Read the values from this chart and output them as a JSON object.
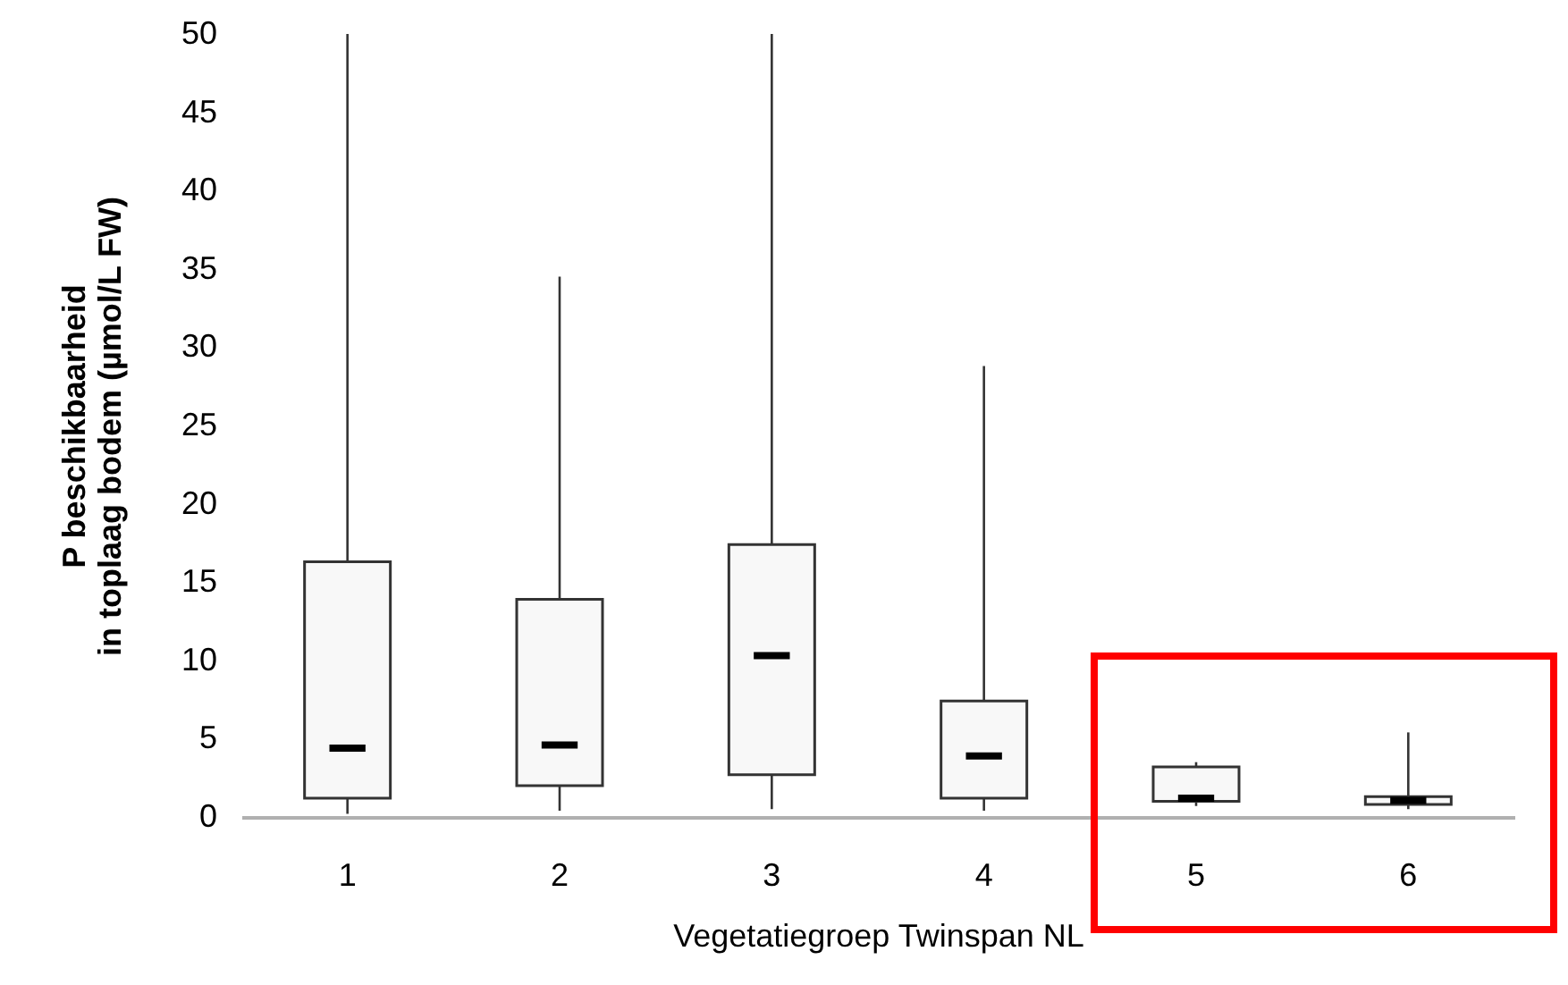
{
  "chart_data": {
    "type": "box",
    "xlabel": "Vegetatiegroep Twinspan NL",
    "ylabel": "P beschikbaarheid\nin toplaag bodem (µmol/L FW)",
    "categories": [
      "1",
      "2",
      "3",
      "4",
      "5",
      "6"
    ],
    "boxes": [
      {
        "low": 0.2,
        "q1": 1.2,
        "median": 4.4,
        "q3": 16.3,
        "high": 50
      },
      {
        "low": 0.4,
        "q1": 2.0,
        "median": 4.6,
        "q3": 13.9,
        "high": 34.5
      },
      {
        "low": 0.5,
        "q1": 2.7,
        "median": 10.3,
        "q3": 17.4,
        "high": 50
      },
      {
        "low": 0.4,
        "q1": 1.2,
        "median": 3.9,
        "q3": 7.4,
        "high": 28.8
      },
      {
        "low": 0.7,
        "q1": 1.0,
        "median": 1.2,
        "q3": 3.2,
        "high": 3.5
      },
      {
        "low": 0.5,
        "q1": 0.8,
        "median": 1.05,
        "q3": 1.3,
        "high": 5.4
      }
    ],
    "ylim": [
      0,
      50
    ],
    "yticks": [
      0,
      5,
      10,
      15,
      20,
      25,
      30,
      35,
      40,
      45,
      50
    ]
  }
}
